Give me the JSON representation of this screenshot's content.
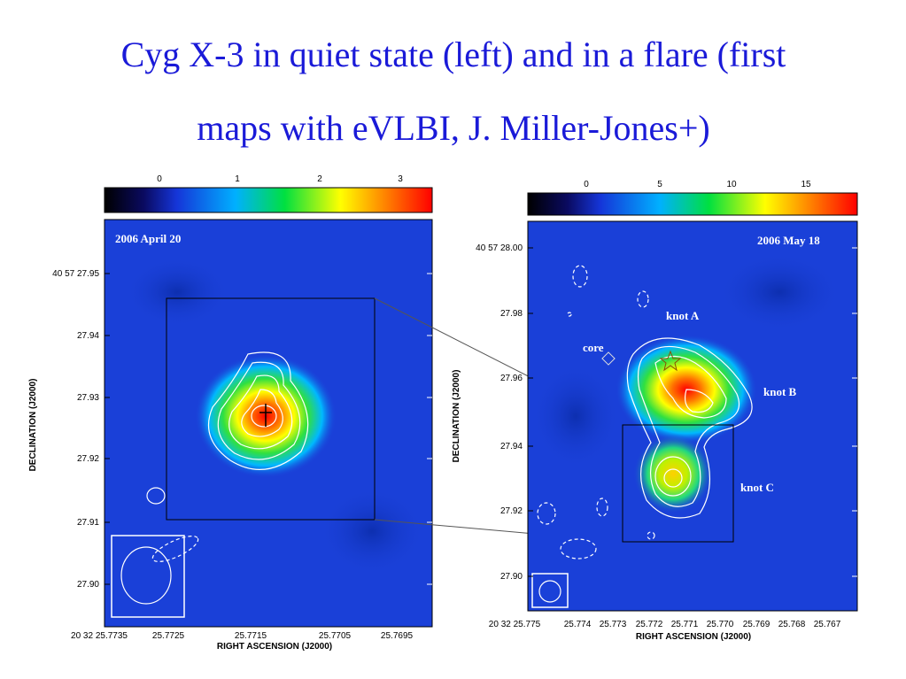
{
  "header": {
    "title_lines": [
      "Cyg X-3 in quiet state (left) and in  a flare (first",
      "maps  with  eVLBI, J. Miller-Jones+)"
    ]
  },
  "left_map": {
    "date": "2006 April 20",
    "colorbar_ticks": [
      "0",
      "1",
      "2",
      "3"
    ],
    "y_ticks": [
      "40 57 27.95",
      "27.94",
      "27.93",
      "27.92",
      "27.91",
      "27.90"
    ],
    "x_ticks": [
      "20 32 25.7735",
      "25.7725",
      "25.7715",
      "25.7705",
      "25.7695"
    ],
    "y_label": "DECLINATION (J2000)",
    "x_label": "RIGHT ASCENSION (J2000)"
  },
  "right_map": {
    "date": "2006 May 18",
    "colorbar_ticks": [
      "0",
      "5",
      "10",
      "15"
    ],
    "y_ticks": [
      "40 57 28.00",
      "27.98",
      "27.96",
      "27.94",
      "27.92",
      "27.90"
    ],
    "x_ticks": [
      "20 32 25.775",
      "25.774",
      "25.773",
      "25.772",
      "25.771",
      "25.770",
      "25.769",
      "25.768",
      "25.767"
    ],
    "y_label": "DECLINATION (J2000)",
    "x_label": "RIGHT ASCENSION (J2000)",
    "annotations": [
      "knot A",
      "core",
      "knot B",
      "knot C"
    ]
  }
}
